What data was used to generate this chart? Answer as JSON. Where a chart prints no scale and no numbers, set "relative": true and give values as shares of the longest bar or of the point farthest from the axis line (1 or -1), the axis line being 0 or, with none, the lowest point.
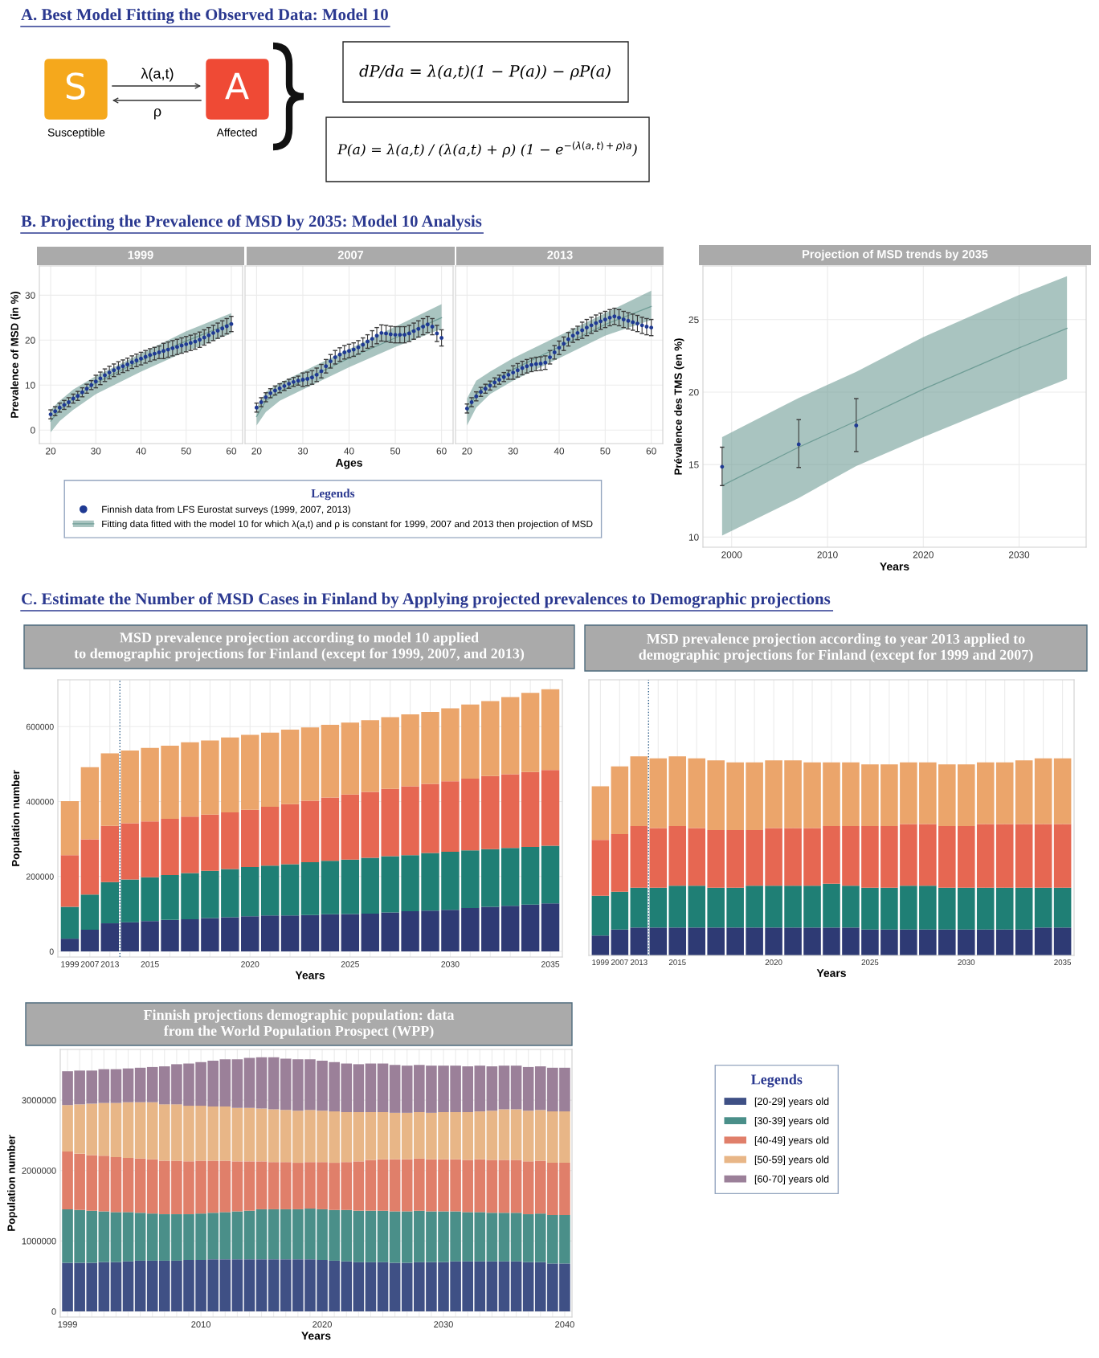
{
  "chart_data": [
    {
      "type": "other",
      "title": "A. Best Model Fitting the Observed Data: Model 10",
      "annotations": [
        "S",
        "A",
        "λ(a,t)",
        "ρ",
        "Susceptible",
        "Affected",
        "dP/da = λ(a,t)(1 − P(a)) − ρP(a)",
        "P(a) = λ(a,t) / (λ(a,t) + ρ) (1 − e$^{−(λ(a,t)+ρ)a}$)"
      ]
    },
    {
      "type": "scatter",
      "title": "1999",
      "ylabel": "Prevalence of MSD (in %)",
      "annotations": [
        "B. Projecting the Prevalence of MSD by 2035: Model 10 Analysis"
      ],
      "legend": "bottom",
      "legend_title": "Legends",
      "grid": true,
      "xlim": [
        17.5,
        62.5
      ],
      "ylim": [
        -3,
        36.5
      ],
      "xticks": [
        20,
        30,
        40,
        50,
        60
      ],
      "yticks": [
        0,
        10,
        20,
        30
      ],
      "series": [
        {
          "type": "scatter",
          "marker": "circle",
          "name": "Finnish data from LFS Eurostat surveys (1999, 2007, 2013)",
          "color": "#1f3a93",
          "x": [
            20,
            21,
            22,
            23,
            24,
            25,
            26,
            27,
            28,
            29,
            30,
            31,
            32,
            33,
            34,
            35,
            36,
            37,
            38,
            39,
            40,
            41,
            42,
            43,
            44,
            45,
            46,
            47,
            48,
            49,
            50,
            51,
            52,
            53,
            54,
            55,
            56,
            57,
            58,
            59,
            60
          ],
          "values": [
            3.5,
            4.2,
            5.0,
            5.6,
            6.2,
            7.0,
            7.6,
            8.4,
            9.2,
            10.0,
            10.8,
            11.5,
            12.2,
            12.8,
            13.3,
            13.8,
            14.2,
            14.6,
            15.1,
            15.5,
            15.9,
            16.3,
            16.7,
            17.0,
            17.3,
            17.6,
            17.9,
            18.2,
            18.5,
            18.8,
            19.1,
            19.4,
            19.7,
            20.1,
            20.6,
            21.1,
            21.6,
            22.1,
            22.6,
            23.1,
            23.6
          ],
          "errors": [
            1,
            1,
            1,
            1,
            1,
            1,
            1,
            1,
            1,
            1,
            1.4,
            1.4,
            1.4,
            1.4,
            1.4,
            1.4,
            1.4,
            1.4,
            1.4,
            1.4,
            1.4,
            1.4,
            1.4,
            1.4,
            1.4,
            1.7,
            1.7,
            1.7,
            1.7,
            1.7,
            1.7,
            1.7,
            1.7,
            1.7,
            1.7,
            1.7,
            1.7,
            1.7,
            1.7,
            1.7,
            1.7
          ]
        },
        {
          "type": "line",
          "name": "Fitting data fitted with the model 10 for which λ(a,t) and ρ is constant for 1999, 2007 and 2013 then projection of MSD",
          "color": "#6f9d96",
          "x": [
            20,
            22,
            25,
            30,
            40,
            50,
            60
          ],
          "values": [
            2,
            4.5,
            7,
            10.5,
            15.5,
            19.8,
            23.8
          ],
          "lower": [
            -0.5,
            2,
            4.5,
            8,
            13,
            17.5,
            21.5
          ],
          "upper": [
            4.5,
            6.5,
            9,
            12,
            17,
            22,
            26
          ]
        }
      ]
    },
    {
      "type": "scatter",
      "title": "2007",
      "xlabel": "Ages",
      "tick_labels": "x",
      "grid": true,
      "xlim": [
        17.5,
        62.5
      ],
      "ylim": [
        -3,
        36.5
      ],
      "xticks": [
        20,
        30,
        40,
        50,
        60
      ],
      "yticks": [
        0,
        10,
        20,
        30
      ],
      "series": [
        {
          "type": "scatter",
          "marker": "circle",
          "color": "#1f3a93",
          "x": [
            20,
            21,
            22,
            23,
            24,
            25,
            26,
            27,
            28,
            29,
            30,
            31,
            32,
            33,
            34,
            35,
            36,
            37,
            38,
            39,
            40,
            41,
            42,
            43,
            44,
            45,
            46,
            47,
            48,
            49,
            50,
            51,
            52,
            53,
            54,
            55,
            56,
            57,
            58,
            59,
            60
          ],
          "values": [
            5,
            6.2,
            7.3,
            8.2,
            8.8,
            9.3,
            9.8,
            10.3,
            10.7,
            11.0,
            11.2,
            11.4,
            11.7,
            12.3,
            13.1,
            14.2,
            15.3,
            16.2,
            16.8,
            17.3,
            17.6,
            17.9,
            18.4,
            19.0,
            19.7,
            20.3,
            21.0,
            21.6,
            21.5,
            21.3,
            21.2,
            21.2,
            21.2,
            21.5,
            22.0,
            22.5,
            23.0,
            23.5,
            23.0,
            21.5,
            20.5
          ],
          "errors": [
            1,
            1,
            1,
            1,
            1,
            1,
            1,
            1,
            1,
            1,
            1.5,
            1.5,
            1.5,
            1.5,
            1.5,
            1.5,
            1.5,
            1.5,
            1.5,
            1.5,
            1.5,
            1.5,
            1.5,
            1.5,
            1.5,
            1.8,
            1.8,
            1.8,
            1.8,
            1.8,
            1.8,
            1.8,
            1.8,
            1.8,
            1.8,
            1.8,
            1.8,
            1.8,
            1.8,
            1.8,
            1.8
          ]
        },
        {
          "type": "line",
          "color": "#6f9d96",
          "x": [
            20,
            22,
            25,
            30,
            40,
            50,
            60
          ],
          "values": [
            3,
            6.5,
            8.5,
            11,
            16,
            20.5,
            25
          ],
          "lower": [
            1,
            4,
            6.5,
            9,
            14,
            18.5,
            22.5
          ],
          "upper": [
            5,
            8.5,
            10.5,
            13,
            18,
            23,
            28
          ]
        }
      ]
    },
    {
      "type": "scatter",
      "title": "2013",
      "tick_labels": "x",
      "grid": true,
      "xlim": [
        17.5,
        62.5
      ],
      "ylim": [
        -3,
        36.5
      ],
      "xticks": [
        20,
        30,
        40,
        50,
        60
      ],
      "yticks": [
        0,
        10,
        20,
        30
      ],
      "series": [
        {
          "type": "scatter",
          "marker": "circle",
          "color": "#1f3a93",
          "x": [
            20,
            21,
            22,
            23,
            24,
            25,
            26,
            27,
            28,
            29,
            30,
            31,
            32,
            33,
            34,
            35,
            36,
            37,
            38,
            39,
            40,
            41,
            42,
            43,
            44,
            45,
            46,
            47,
            48,
            49,
            50,
            51,
            52,
            53,
            54,
            55,
            56,
            57,
            58,
            59,
            60
          ],
          "values": [
            4.8,
            6.2,
            7.5,
            8.5,
            9.2,
            9.9,
            10.6,
            11.2,
            11.8,
            12.3,
            12.8,
            13.3,
            13.8,
            14.2,
            14.5,
            14.7,
            14.8,
            15.0,
            16.2,
            17.3,
            18.3,
            19.2,
            20.2,
            21.0,
            21.6,
            22.2,
            22.8,
            23.3,
            23.8,
            24.2,
            24.6,
            25.0,
            25.3,
            25.0,
            24.6,
            24.3,
            24.0,
            23.7,
            23.3,
            23.0,
            22.8
          ],
          "errors": [
            1,
            1,
            1,
            1,
            1,
            1,
            1,
            1,
            1,
            1,
            1.5,
            1.5,
            1.5,
            1.5,
            1.5,
            1.5,
            1.5,
            1.5,
            1.5,
            1.5,
            1.5,
            1.5,
            1.5,
            1.5,
            1.5,
            1.8,
            1.8,
            1.8,
            1.8,
            1.8,
            1.8,
            1.8,
            1.8,
            1.8,
            1.8,
            1.8,
            1.8,
            1.8,
            1.8,
            1.8,
            1.8
          ]
        },
        {
          "type": "line",
          "color": "#6f9d96",
          "x": [
            20,
            22,
            25,
            30,
            40,
            50,
            60
          ],
          "values": [
            4,
            8,
            10.5,
            13.5,
            18.5,
            23.5,
            27.5
          ],
          "lower": [
            1,
            5,
            8,
            11,
            16,
            21,
            24.5
          ],
          "upper": [
            7,
            11,
            13,
            16,
            21,
            26,
            31
          ]
        }
      ]
    },
    {
      "type": "scatter",
      "title": "Projection of MSD trends by 2035",
      "xlabel": "Years",
      "ylabel": "Prévalence des TMS (en %)",
      "grid": true,
      "xlim": [
        1997,
        2037
      ],
      "ylim": [
        9.3,
        28.7
      ],
      "xticks": [
        2000,
        2010,
        2020,
        2030
      ],
      "yticks": [
        10,
        15,
        20,
        25
      ],
      "series": [
        {
          "type": "scatter",
          "marker": "circle",
          "color": "#1f3a93",
          "x": [
            1999,
            2007,
            2013
          ],
          "values": [
            14.85,
            16.4,
            17.7
          ],
          "errors": [
            [
              13.55,
              16.2
            ],
            [
              14.8,
              18.1
            ],
            [
              15.9,
              19.55
            ]
          ]
        },
        {
          "type": "line",
          "color": "#6f9d96",
          "x": [
            1999,
            2007,
            2013,
            2020,
            2030,
            2035
          ],
          "values": [
            13.55,
            16.2,
            18.0,
            20.2,
            23.05,
            24.4
          ],
          "lower": [
            10.1,
            12.7,
            14.9,
            16.9,
            19.6,
            20.9
          ],
          "upper": [
            16.9,
            19.6,
            21.4,
            23.8,
            26.7,
            28.0
          ]
        }
      ]
    },
    {
      "type": "bar",
      "stacked": true,
      "title": "MSD prevalence projection according to model 10 applied\nto demographic projections for Finland (except for 1999, 2007, and 2013)",
      "xlabel": "Years",
      "ylabel": "Population number",
      "annotations": [
        "C. Estimate the Number of MSD Cases in Finland by Applying projected prevalences to Demographic projections"
      ],
      "grid": true,
      "ylim": [
        -15000,
        725000
      ],
      "yticks": [
        0,
        200000,
        400000,
        600000
      ],
      "ref_lines": [
        {
          "axis": "x",
          "value": "2013",
          "line_style": "dotted",
          "color": "#2f5f8a"
        }
      ],
      "categories": [
        "1999",
        "2007",
        "2013",
        null,
        "2015",
        null,
        null,
        null,
        null,
        "2020",
        null,
        null,
        null,
        null,
        "2025",
        null,
        null,
        null,
        null,
        "2030",
        null,
        null,
        null,
        null,
        "2035"
      ],
      "series": [
        {
          "color": "#2e3a74",
          "values": [
            34000,
            58000,
            75000,
            78000,
            81000,
            84000,
            86000,
            89000,
            91000,
            94000,
            96000,
            96000,
            97000,
            99000,
            100000,
            101000,
            104000,
            107000,
            109000,
            111000,
            116000,
            119000,
            122000,
            125000,
            128000
          ]
        },
        {
          "color": "#1f7f75",
          "values": [
            85000,
            94000,
            110000,
            114000,
            117000,
            120000,
            123000,
            126000,
            129000,
            131000,
            133000,
            137000,
            141000,
            143000,
            145000,
            149000,
            150000,
            150000,
            154000,
            155000,
            154000,
            154000,
            154000,
            154000,
            154000
          ]
        },
        {
          "color": "#e66752",
          "values": [
            138000,
            147000,
            150000,
            150000,
            149000,
            150000,
            151000,
            150000,
            151000,
            153000,
            157000,
            160000,
            164000,
            169000,
            174000,
            176000,
            180000,
            184000,
            184000,
            188000,
            191000,
            195000,
            197000,
            200000,
            202000
          ]
        },
        {
          "color": "#eba56b",
          "values": [
            144000,
            193000,
            194000,
            194000,
            196000,
            195000,
            198000,
            198000,
            200000,
            200000,
            198000,
            199000,
            196000,
            194000,
            192000,
            191000,
            191000,
            192000,
            192000,
            195000,
            198000,
            200000,
            206000,
            211000,
            216000
          ]
        }
      ]
    },
    {
      "type": "bar",
      "stacked": true,
      "relative": true,
      "title": "MSD prevalence projection according to year 2013 applied to\ndemographic projections for Finland (except for 1999 and 2007)",
      "xlabel": "Years",
      "grid": true,
      "ref_lines": [
        {
          "axis": "x",
          "value": "2013",
          "line_style": "dotted",
          "color": "#2f5f8a"
        }
      ],
      "categories": [
        "1999",
        "2007",
        "2013",
        null,
        "2015",
        null,
        null,
        null,
        null,
        "2020",
        null,
        null,
        null,
        null,
        "2025",
        null,
        null,
        null,
        null,
        "2030",
        null,
        null,
        null,
        null,
        "2035"
      ],
      "series": [
        {
          "color": "#2e3a74",
          "values": [
            0.1,
            0.13,
            0.14,
            0.14,
            0.14,
            0.14,
            0.14,
            0.14,
            0.14,
            0.14,
            0.14,
            0.14,
            0.14,
            0.14,
            0.13,
            0.13,
            0.13,
            0.13,
            0.13,
            0.13,
            0.13,
            0.13,
            0.13,
            0.14,
            0.14
          ]
        },
        {
          "color": "#1f7f75",
          "values": [
            0.2,
            0.19,
            0.2,
            0.2,
            0.21,
            0.21,
            0.2,
            0.2,
            0.21,
            0.21,
            0.21,
            0.21,
            0.22,
            0.21,
            0.21,
            0.21,
            0.22,
            0.22,
            0.21,
            0.21,
            0.21,
            0.21,
            0.21,
            0.2,
            0.2
          ]
        },
        {
          "color": "#e66752",
          "values": [
            0.28,
            0.29,
            0.31,
            0.3,
            0.3,
            0.29,
            0.29,
            0.29,
            0.28,
            0.29,
            0.29,
            0.29,
            0.29,
            0.3,
            0.31,
            0.31,
            0.31,
            0.31,
            0.31,
            0.31,
            0.32,
            0.32,
            0.32,
            0.32,
            0.32
          ]
        },
        {
          "color": "#eba56b",
          "values": [
            0.27,
            0.34,
            0.35,
            0.35,
            0.35,
            0.35,
            0.35,
            0.34,
            0.34,
            0.34,
            0.34,
            0.33,
            0.32,
            0.32,
            0.31,
            0.31,
            0.31,
            0.31,
            0.31,
            0.31,
            0.31,
            0.31,
            0.32,
            0.33,
            0.33
          ]
        }
      ]
    },
    {
      "type": "bar",
      "stacked": true,
      "title": "Finnish projections demographic population: data\nfrom the World Population Prospect (WPP)",
      "xlabel": "Years",
      "ylabel": "Population number",
      "legend": "right",
      "legend_title": "Legends",
      "grid": true,
      "ylim": [
        -80000,
        3720000
      ],
      "yticks": [
        0,
        1000000,
        2000000,
        3000000
      ],
      "categories": [
        "1999",
        null,
        null,
        null,
        null,
        null,
        null,
        null,
        null,
        null,
        null,
        "2010",
        null,
        null,
        null,
        null,
        null,
        null,
        null,
        null,
        null,
        "2020",
        null,
        null,
        null,
        null,
        null,
        null,
        null,
        null,
        null,
        "2030",
        null,
        null,
        null,
        null,
        null,
        null,
        null,
        null,
        null,
        "2040"
      ],
      "series": [
        {
          "name": "[20-29] years old",
          "color": "#3f5085",
          "values": [
            690000,
            690000,
            690000,
            700000,
            700000,
            710000,
            720000,
            720000,
            720000,
            720000,
            730000,
            730000,
            740000,
            740000,
            740000,
            740000,
            740000,
            740000,
            740000,
            740000,
            740000,
            730000,
            720000,
            710000,
            700000,
            700000,
            700000,
            690000,
            690000,
            700000,
            700000,
            700000,
            710000,
            710000,
            710000,
            710000,
            710000,
            710000,
            700000,
            700000,
            680000,
            680000
          ]
        },
        {
          "name": "[30-39] years old",
          "color": "#4a8f89",
          "values": [
            760000,
            750000,
            740000,
            720000,
            710000,
            700000,
            680000,
            670000,
            660000,
            660000,
            650000,
            660000,
            660000,
            670000,
            680000,
            690000,
            710000,
            710000,
            710000,
            710000,
            720000,
            720000,
            720000,
            730000,
            730000,
            730000,
            730000,
            730000,
            730000,
            730000,
            720000,
            720000,
            710000,
            700000,
            700000,
            690000,
            690000,
            690000,
            680000,
            690000,
            690000,
            690000
          ]
        },
        {
          "name": "[40-49] years old",
          "color": "#e07f6a",
          "values": [
            820000,
            800000,
            790000,
            790000,
            780000,
            770000,
            770000,
            770000,
            760000,
            760000,
            750000,
            750000,
            740000,
            730000,
            710000,
            700000,
            680000,
            670000,
            670000,
            660000,
            660000,
            670000,
            670000,
            680000,
            700000,
            720000,
            730000,
            740000,
            740000,
            740000,
            740000,
            740000,
            740000,
            740000,
            750000,
            750000,
            750000,
            750000,
            750000,
            750000,
            740000,
            740000
          ]
        },
        {
          "name": "[50-59] years old",
          "color": "#e8b687",
          "values": [
            660000,
            700000,
            730000,
            750000,
            770000,
            790000,
            800000,
            810000,
            800000,
            800000,
            790000,
            780000,
            770000,
            770000,
            760000,
            760000,
            750000,
            750000,
            740000,
            740000,
            740000,
            730000,
            730000,
            710000,
            700000,
            680000,
            670000,
            660000,
            660000,
            660000,
            660000,
            670000,
            670000,
            680000,
            680000,
            700000,
            720000,
            720000,
            720000,
            720000,
            730000,
            730000
          ]
        },
        {
          "name": "[60-70] years old",
          "color": "#9b8099",
          "values": [
            480000,
            480000,
            470000,
            480000,
            480000,
            480000,
            490000,
            500000,
            540000,
            570000,
            600000,
            620000,
            650000,
            670000,
            690000,
            710000,
            730000,
            740000,
            730000,
            730000,
            720000,
            710000,
            700000,
            690000,
            680000,
            690000,
            690000,
            680000,
            670000,
            670000,
            670000,
            660000,
            660000,
            650000,
            650000,
            630000,
            620000,
            620000,
            620000,
            620000,
            620000,
            620000
          ]
        }
      ]
    }
  ]
}
